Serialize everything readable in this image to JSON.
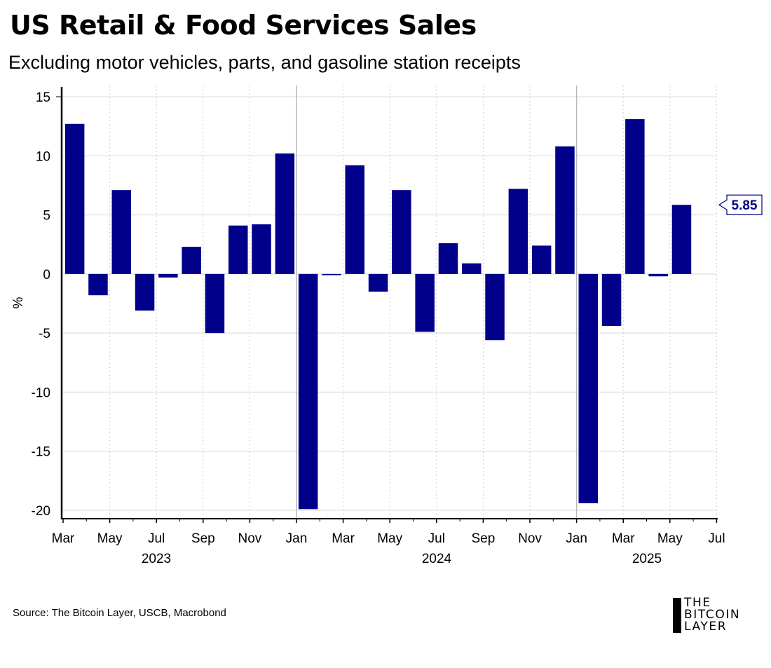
{
  "header": {
    "title": "US Retail & Food Services Sales",
    "subtitle": "Excluding motor vehicles, parts, and gasoline station receipts"
  },
  "footer": {
    "source": "Source: The Bitcoin Layer, USCB, Macrobond",
    "logo_lines": [
      "THE",
      "BITCOIN",
      "LAYER"
    ]
  },
  "colors": {
    "bar": "#00008b",
    "grid": "#d9d9d9",
    "axis": "#000000",
    "year_divider": "#b8b8b8"
  },
  "chart_data": {
    "type": "bar",
    "title": "US Retail & Food Services Sales",
    "subtitle": "Excluding motor vehicles, parts, and gasoline station receipts",
    "ylabel": "%",
    "xlabel": "",
    "ylim": [
      -20,
      15
    ],
    "yticks": [
      15,
      10,
      5,
      0,
      -5,
      -10,
      -15,
      -20
    ],
    "month_tick_labels": [
      "Mar",
      "May",
      "Jul",
      "Sep",
      "Nov",
      "Jan",
      "Mar",
      "May",
      "Jul",
      "Sep",
      "Nov",
      "Jan",
      "Mar",
      "May",
      "Jul"
    ],
    "year_labels": [
      "2023",
      "2024",
      "2025"
    ],
    "categories": [
      "2023-03",
      "2023-04",
      "2023-05",
      "2023-06",
      "2023-07",
      "2023-08",
      "2023-09",
      "2023-10",
      "2023-11",
      "2023-12",
      "2024-01",
      "2024-02",
      "2024-03",
      "2024-04",
      "2024-05",
      "2024-06",
      "2024-07",
      "2024-08",
      "2024-09",
      "2024-10",
      "2024-11",
      "2024-12",
      "2025-01",
      "2025-02",
      "2025-03",
      "2025-04",
      "2025-05"
    ],
    "values": [
      12.7,
      -1.8,
      7.1,
      -3.1,
      -0.3,
      2.3,
      -5.0,
      4.1,
      4.2,
      10.2,
      -19.9,
      -0.1,
      9.2,
      -1.5,
      7.1,
      -4.9,
      2.6,
      0.9,
      -5.6,
      7.2,
      2.4,
      10.8,
      -19.4,
      -4.4,
      13.1,
      -0.2,
      5.85
    ],
    "last_value_label": "5.85",
    "grid": true
  }
}
